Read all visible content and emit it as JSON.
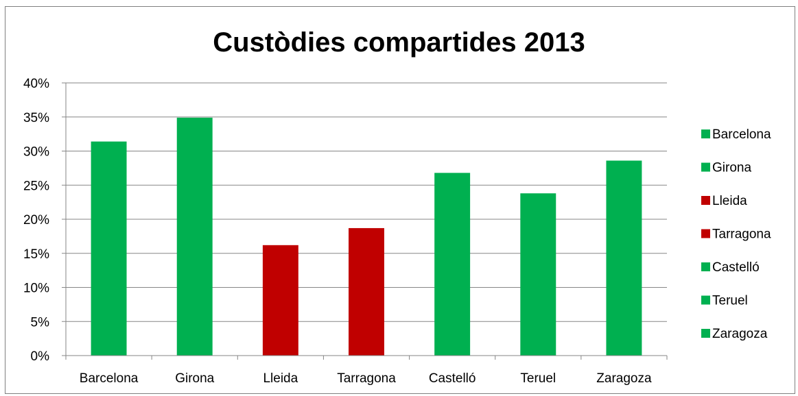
{
  "chart_data": {
    "type": "bar",
    "title": "Custòdies compartides 2013",
    "categories": [
      "Barcelona",
      "Girona",
      "Lleida",
      "Tarragona",
      "Castelló",
      "Teruel",
      "Zaragoza"
    ],
    "values": [
      0.314,
      0.349,
      0.162,
      0.187,
      0.268,
      0.238,
      0.286
    ],
    "bar_colors": [
      "#00b050",
      "#00b050",
      "#c00000",
      "#c00000",
      "#00b050",
      "#00b050",
      "#00b050"
    ],
    "ylim": [
      0,
      0.4
    ],
    "yticks": [
      0,
      0.05,
      0.1,
      0.15,
      0.2,
      0.25,
      0.3,
      0.35,
      0.4
    ],
    "ytick_labels": [
      "0%",
      "5%",
      "10%",
      "15%",
      "20%",
      "25%",
      "30%",
      "35%",
      "40%"
    ],
    "grid": true,
    "legend": {
      "position": "right",
      "entries": [
        {
          "label": "Barcelona",
          "color": "#00b050"
        },
        {
          "label": "Girona",
          "color": "#00b050"
        },
        {
          "label": "Lleida",
          "color": "#c00000"
        },
        {
          "label": "Tarragona",
          "color": "#c00000"
        },
        {
          "label": "Castelló",
          "color": "#00b050"
        },
        {
          "label": "Teruel",
          "color": "#00b050"
        },
        {
          "label": "Zaragoza",
          "color": "#00b050"
        }
      ]
    }
  }
}
